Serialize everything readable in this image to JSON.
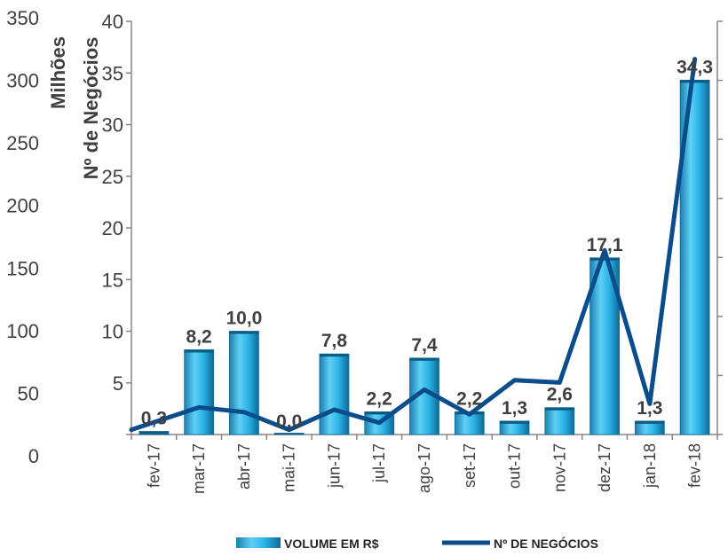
{
  "chart_data": {
    "type": "bar",
    "categories": [
      "fev-17",
      "mar-17",
      "abr-17",
      "mai-17",
      "jun-17",
      "jul-17",
      "ago-17",
      "set-17",
      "out-17",
      "nov-17",
      "dez-17",
      "jan-18",
      "fev-18"
    ],
    "series": [
      {
        "name": "VOLUME EM R$",
        "type": "bar",
        "axis": "secondary",
        "values": [
          0.3,
          8.2,
          10.0,
          0.0,
          7.8,
          2.2,
          7.4,
          2.2,
          1.3,
          2.6,
          17.1,
          1.3,
          34.3
        ],
        "labels": [
          "0,3",
          "8,2",
          "10,0",
          "0,0",
          "7,8",
          "2,2",
          "7,4",
          "2,2",
          "1,3",
          "2,6",
          "17,1",
          "1,3",
          "34,3"
        ],
        "color": "#29A8DF"
      },
      {
        "name": "Nº DE NEGÓCIOS",
        "type": "line",
        "axis": "primary",
        "values": [
          4,
          23,
          19,
          4,
          21,
          10,
          38,
          17,
          46,
          44,
          156,
          26,
          318
        ],
        "color": "#0B4D8C"
      }
    ],
    "primary_axis": {
      "title": "Milhões",
      "ticks": [
        "0",
        "50",
        "100",
        "150",
        "200",
        "250",
        "300",
        "350"
      ],
      "ylim": [
        0,
        350
      ]
    },
    "secondary_axis": {
      "title": "Nº de Negócios",
      "ticks": [
        "0",
        "5",
        "10",
        "15",
        "20",
        "25",
        "30",
        "35",
        "40"
      ],
      "ylim": [
        0,
        40
      ]
    },
    "legend": {
      "position": "bottom"
    }
  }
}
